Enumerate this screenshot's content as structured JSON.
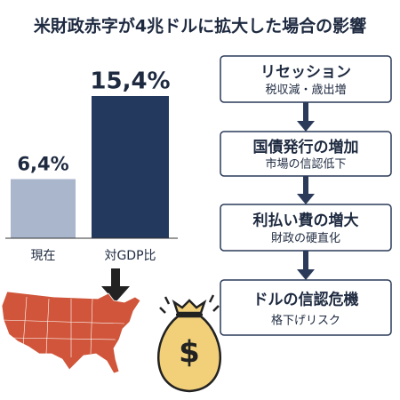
{
  "title": "米財政赤字が4兆ドルに拡大した場合の影響",
  "chart_data": {
    "type": "bar",
    "categories": [
      "現在",
      "対GDP比"
    ],
    "values": [
      6.4,
      15.4
    ],
    "value_labels": [
      "6,4%",
      "15,4%"
    ],
    "colors": [
      "#a9b6cb",
      "#233a5e"
    ]
  },
  "flow": [
    {
      "title": "リセッション",
      "subtitle": "税収減・歳出増"
    },
    {
      "title": "国債発行の増加",
      "subtitle": "市場の信認低下"
    },
    {
      "title": "利払い費の増大",
      "subtitle": "財政の硬直化"
    },
    {
      "title": "ドルの信認危機",
      "subtitle": "格下げリスク"
    }
  ]
}
